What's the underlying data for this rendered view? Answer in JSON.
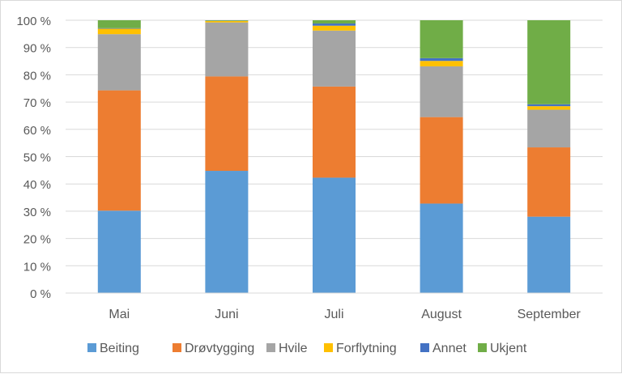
{
  "chart_data": {
    "type": "bar",
    "stacked": true,
    "percent": true,
    "title": "",
    "xlabel": "",
    "ylabel": "",
    "ylim": [
      0,
      100
    ],
    "yticks": [
      "0 %",
      "10 %",
      "20 %",
      "30 %",
      "40 %",
      "50 %",
      "60 %",
      "70 %",
      "80 %",
      "90 %",
      "100 %"
    ],
    "grid": true,
    "legend_position": "bottom",
    "categories": [
      "Mai",
      "Juni",
      "Juli",
      "August",
      "September"
    ],
    "series": [
      {
        "name": "Beiting",
        "color": "#5B9BD5",
        "values": [
          30.2,
          44.8,
          42.3,
          32.8,
          28.0
        ]
      },
      {
        "name": "Drøvtygging",
        "color": "#ED7D31",
        "values": [
          44.1,
          34.6,
          33.4,
          31.7,
          25.4
        ]
      },
      {
        "name": "Hvile",
        "color": "#A5A5A5",
        "values": [
          20.6,
          19.8,
          20.5,
          18.6,
          13.8
        ]
      },
      {
        "name": "Forflytning",
        "color": "#FFC000",
        "values": [
          2.0,
          0.5,
          1.8,
          2.0,
          1.3
        ]
      },
      {
        "name": "Annet",
        "color": "#4472C4",
        "values": [
          0.2,
          0.1,
          0.8,
          1.0,
          0.7
        ]
      },
      {
        "name": "Ukjent",
        "color": "#70AD47",
        "values": [
          2.9,
          0.2,
          1.2,
          13.9,
          30.8
        ]
      }
    ]
  }
}
